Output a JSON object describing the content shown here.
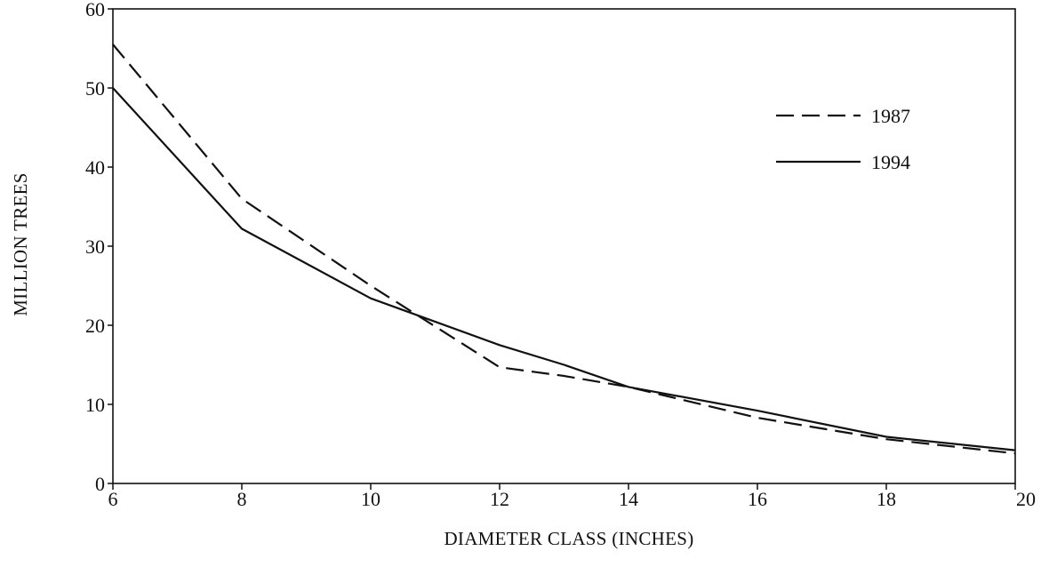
{
  "chart_data": {
    "type": "line",
    "title": "",
    "xlabel": "DIAMETER  CLASS  (INCHES)",
    "ylabel": "MILLION TREES",
    "x": [
      6,
      8,
      10,
      12,
      14,
      16,
      18,
      20
    ],
    "x_tick_labels": [
      "6",
      "8",
      "10",
      "12",
      "14",
      "16",
      "18",
      "20"
    ],
    "y_tick_labels": [
      "0",
      "10",
      "20",
      "30",
      "40",
      "50",
      "60"
    ],
    "xlim": [
      6,
      20
    ],
    "ylim": [
      0,
      60
    ],
    "grid": false,
    "legend_position": "top-right",
    "series": [
      {
        "name": "1987",
        "style": "dashed",
        "color": "#111111",
        "points": [
          [
            6,
            55.5
          ],
          [
            8,
            36
          ],
          [
            10,
            25
          ],
          [
            12,
            14.7
          ],
          [
            13,
            13.6
          ],
          [
            14,
            12.2
          ],
          [
            16,
            8.3
          ],
          [
            18,
            5.6
          ],
          [
            20,
            3.8
          ]
        ]
      },
      {
        "name": "1994",
        "style": "solid",
        "color": "#111111",
        "points": [
          [
            6,
            50
          ],
          [
            8,
            32.2
          ],
          [
            10,
            23.4
          ],
          [
            12,
            17.5
          ],
          [
            13,
            15
          ],
          [
            14,
            12.2
          ],
          [
            16,
            9.2
          ],
          [
            18,
            5.9
          ],
          [
            20,
            4.2
          ]
        ]
      }
    ]
  }
}
